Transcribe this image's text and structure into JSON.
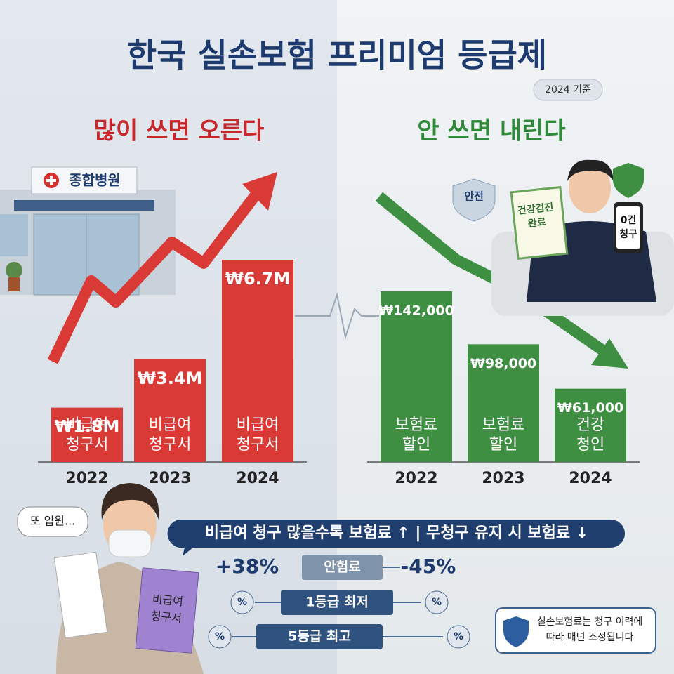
{
  "header": {
    "title": "한국 실손보험 프리미엄 등급제",
    "badge": "2024 기준"
  },
  "left_heading": "많이 쓰면 오른다",
  "right_heading": "안 쓰면 내린다",
  "hospital_sign": "종합병원",
  "chart_data": [
    {
      "type": "bar",
      "categories": [
        "2022",
        "2023",
        "2024"
      ],
      "values": [
        1800000,
        3400000,
        6700000
      ],
      "value_labels": [
        "₩1.8M",
        "₩3.4M",
        "₩6.7M"
      ],
      "color": "#d93a36",
      "bar_labels": [
        [
          "비급여",
          "청구서"
        ],
        [
          "비급여",
          "청구서"
        ],
        [
          "비급여",
          "청구서"
        ]
      ]
    },
    {
      "type": "bar",
      "categories": [
        "2022",
        "2023",
        "2024"
      ],
      "values": [
        142000,
        98000,
        61000
      ],
      "value_labels": [
        "₩142,000",
        "₩98,000",
        "₩61,000"
      ],
      "color": "#3f8f43",
      "bar_labels": [
        [
          "보험료",
          "할인"
        ],
        [
          "보험료",
          "할인"
        ],
        [
          "건강",
          "청인"
        ]
      ]
    }
  ],
  "stickers": {
    "safe": "안전",
    "checkup": [
      "건강검진",
      "완료"
    ],
    "phone": [
      "0건",
      "청구"
    ]
  },
  "speech": "또 입원...",
  "book": [
    "비급여",
    "청구서"
  ],
  "banner": "비급여 청구 많을수록 보험료 ↑ | 무청구 유지 시 보험료 ↓",
  "rows": [
    {
      "left": "+38%",
      "label": "안험료",
      "right": "-45%"
    },
    {
      "left": "%",
      "label": "1등급 최저",
      "right": "%"
    },
    {
      "left": "%",
      "label": "5등급 최고",
      "right": "%"
    }
  ],
  "note": [
    "실손보험료는 청구 이력에",
    "따라 매년 조정됩니다"
  ]
}
